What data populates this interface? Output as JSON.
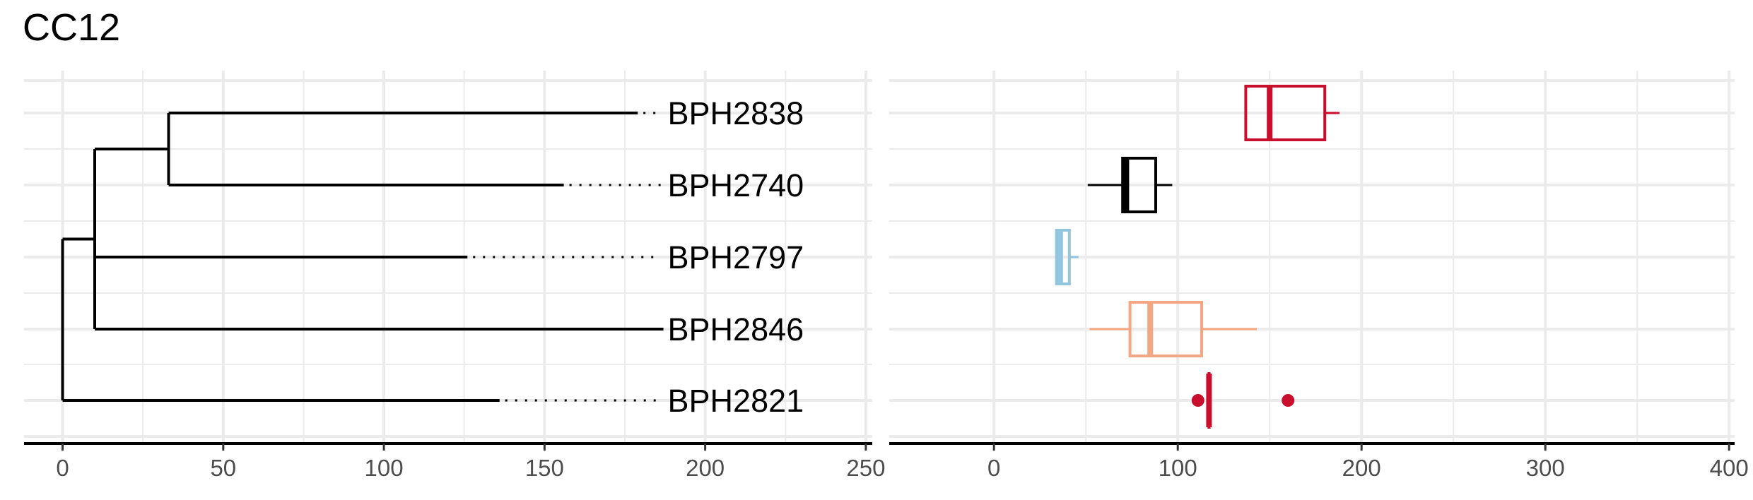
{
  "title": "CC12",
  "chart_data": [
    {
      "type": "dendrogram",
      "xlim": [
        -12,
        252
      ],
      "x_ticks": [
        0,
        50,
        100,
        150,
        200,
        250
      ],
      "tips": [
        {
          "label": "BPH2838",
          "branch_end": 179
        },
        {
          "label": "BPH2740",
          "branch_end": 156
        },
        {
          "label": "BPH2797",
          "branch_end": 126
        },
        {
          "label": "BPH2846",
          "branch_end": 187
        },
        {
          "label": "BPH2821",
          "branch_end": 136
        }
      ],
      "label_x": 187,
      "nodes": [
        {
          "x": 0,
          "children": [
            "BPH2821",
            "n1"
          ]
        },
        {
          "id": "n1",
          "x": 10,
          "children": [
            "n2",
            "BPH2797",
            "BPH2846"
          ]
        },
        {
          "id": "n2",
          "x": 33,
          "children": [
            "BPH2838",
            "BPH2740"
          ]
        }
      ],
      "grid": true
    },
    {
      "type": "boxplot",
      "orientation": "horizontal",
      "xlim": [
        -57,
        403
      ],
      "x_ticks": [
        0,
        100,
        200,
        300,
        400
      ],
      "categories": [
        "BPH2838",
        "BPH2740",
        "BPH2797",
        "BPH2846",
        "BPH2821"
      ],
      "boxes": [
        {
          "category": "BPH2838",
          "whisker_low": 137,
          "q1": 137,
          "median": 150,
          "q3": 180,
          "whisker_high": 188,
          "color": "#c8102e"
        },
        {
          "category": "BPH2740",
          "whisker_low": 51,
          "q1": 70,
          "median": 72,
          "q3": 88,
          "whisker_high": 97,
          "color": "#000000"
        },
        {
          "category": "BPH2797",
          "whisker_low": 34,
          "q1": 34,
          "median": 36,
          "q3": 41,
          "whisker_high": 46,
          "color": "#92c5de"
        },
        {
          "category": "BPH2846",
          "whisker_low": 52,
          "q1": 74,
          "median": 85,
          "q3": 113,
          "whisker_high": 143,
          "color": "#f4a582"
        },
        {
          "category": "BPH2821",
          "whisker_low": 117,
          "q1": 117,
          "median": 117,
          "q3": 117,
          "whisker_high": 117,
          "color": "#c8102e",
          "outliers": [
            111,
            160
          ]
        }
      ],
      "grid": true
    }
  ]
}
